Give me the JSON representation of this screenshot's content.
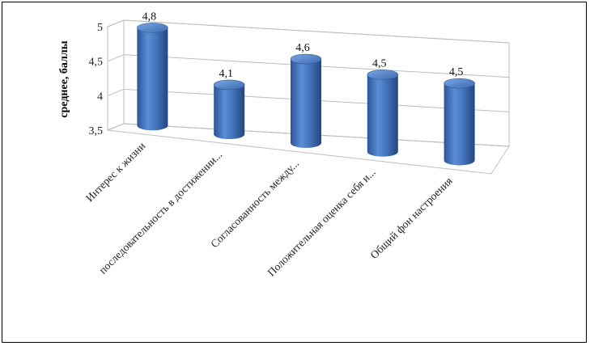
{
  "chart_data": {
    "type": "bar",
    "style": "3d-cylinder",
    "ylabel": "среднее, баллы",
    "xlabel": "",
    "title": "",
    "yticks": [
      "3,5",
      "4",
      "4,5",
      "5"
    ],
    "ylim": [
      3.5,
      5
    ],
    "grid": true,
    "legend": "none",
    "bar_color": "#4a7cc4",
    "categories": [
      "Интерес к жизни",
      "последовательность в достижении...",
      "Согласованность между...",
      "Положительная оценка себя и...",
      "Общий фон настроения"
    ],
    "values": [
      4.8,
      4.1,
      4.6,
      4.5,
      4.5
    ],
    "value_labels": [
      "4,8",
      "4,1",
      "4,6",
      "4,5",
      "4,5"
    ]
  }
}
